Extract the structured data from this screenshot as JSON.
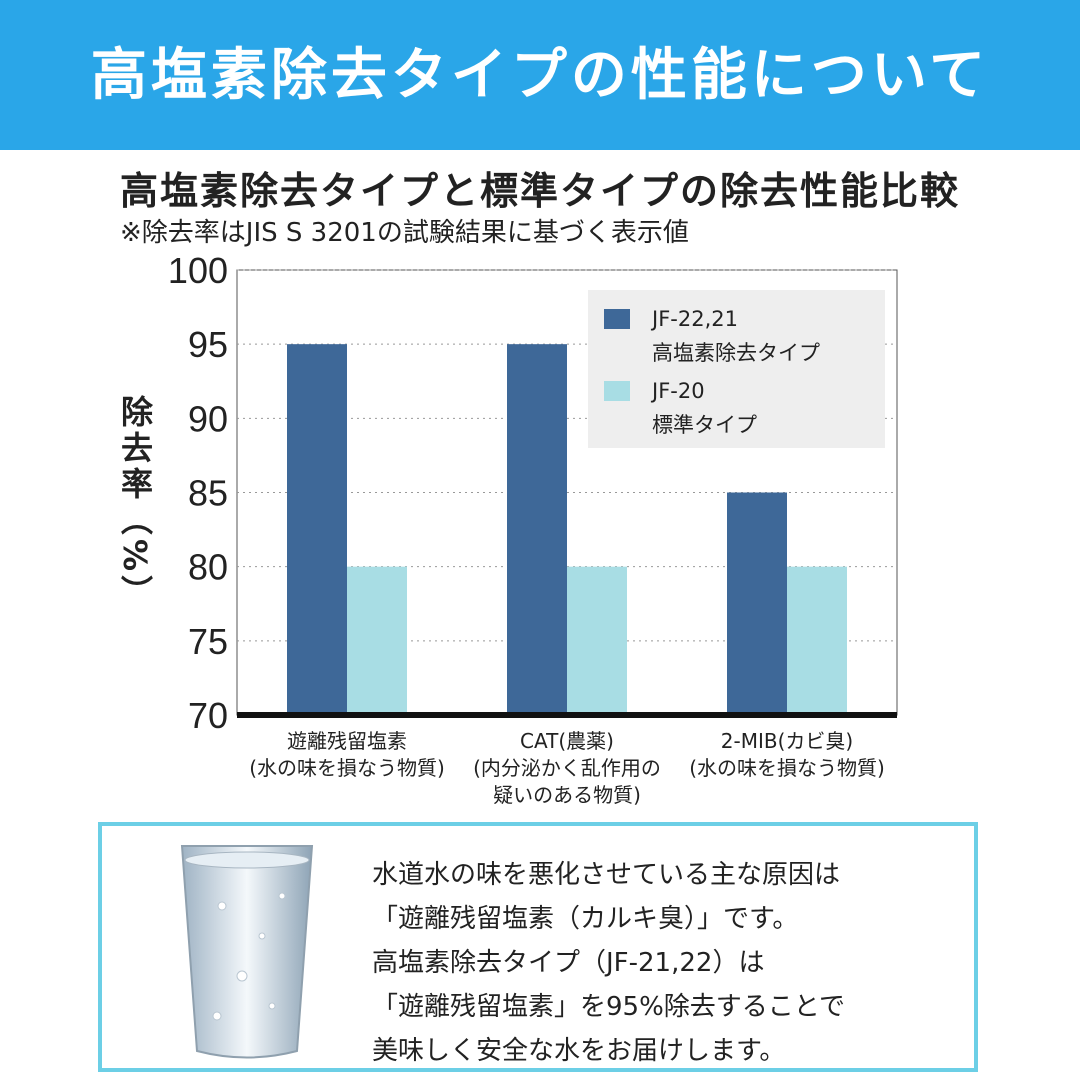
{
  "header": {
    "title": "高塩素除去タイプの性能について"
  },
  "chart_data": {
    "type": "bar",
    "title": "高塩素除去タイプと標準タイプの除去性能比較",
    "subtitle": "※除去率はJIS S 3201の試験結果に基づく表示値",
    "y_label": "除去率（%）",
    "categories": [
      "遊離残留塩素\n(水の味を損なう物質)",
      "CAT(農薬)\n(内分泌かく乱作用の\n疑いのある物質)",
      "2-MIB(カビ臭)\n(水の味を損なう物質)"
    ],
    "series": [
      {
        "name": "JF-22,21\n高塩素除去タイプ",
        "color": "#3e6898",
        "values": [
          95,
          95,
          85
        ]
      },
      {
        "name": "JF-20\n標準タイプ",
        "color": "#a8dde4",
        "values": [
          80,
          80,
          80
        ]
      }
    ],
    "ylim": [
      70,
      100
    ],
    "yticks": [
      70,
      75,
      80,
      85,
      90,
      95,
      100
    ],
    "grid": true
  },
  "note": {
    "lines": [
      "水道水の味を悪化させている主な原因は",
      "「遊離残留塩素（カルキ臭）」です。",
      "高塩素除去タイプ（JF-21,22）は",
      "「遊離残留塩素」を95%除去することで",
      "美味しく安全な水をお届けします。"
    ]
  }
}
